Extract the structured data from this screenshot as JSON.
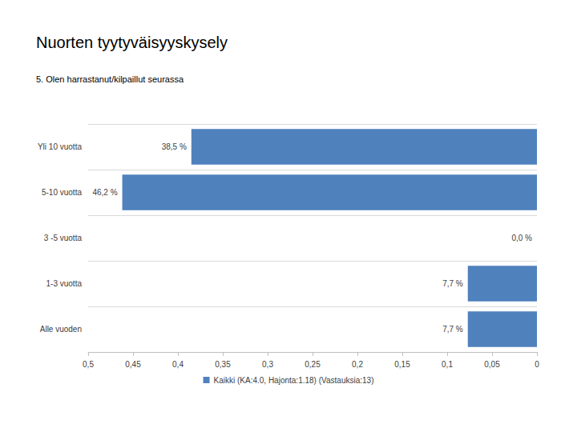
{
  "chart_data": {
    "type": "bar",
    "title": "Nuorten tyytyväisyyskysely",
    "subtitle": "5. Olen harrastanut/kilpaillut seurassa",
    "orientation": "horizontal",
    "categories": [
      "Yli 10 vuotta",
      "5-10 vuotta",
      "3 -5 vuotta",
      "1-3 vuotta",
      "Alle vuoden"
    ],
    "series": [
      {
        "name": "Kaikki (KA:4.0, Hajonta:1.18) (Vastauksia:13)",
        "color": "#4f81bd",
        "values": [
          0.385,
          0.462,
          0.0,
          0.077,
          0.077
        ],
        "value_labels": [
          "38,5 %",
          "46,2 %",
          "0,0 %",
          "7,7 %",
          "7,7 %"
        ]
      }
    ],
    "xlim": [
      0.5,
      0
    ],
    "xticks": [
      {
        "value": 0.5,
        "label": "0,5"
      },
      {
        "value": 0.45,
        "label": "0,45"
      },
      {
        "value": 0.4,
        "label": "0,4"
      },
      {
        "value": 0.35,
        "label": "0,35"
      },
      {
        "value": 0.3,
        "label": "0,3"
      },
      {
        "value": 0.25,
        "label": "0,25"
      },
      {
        "value": 0.2,
        "label": "0,2"
      },
      {
        "value": 0.15,
        "label": "0,15"
      },
      {
        "value": 0.1,
        "label": "0,1"
      },
      {
        "value": 0.05,
        "label": "0,05"
      },
      0
    ],
    "data_labels": true,
    "grid": true,
    "legend": "bottom"
  }
}
